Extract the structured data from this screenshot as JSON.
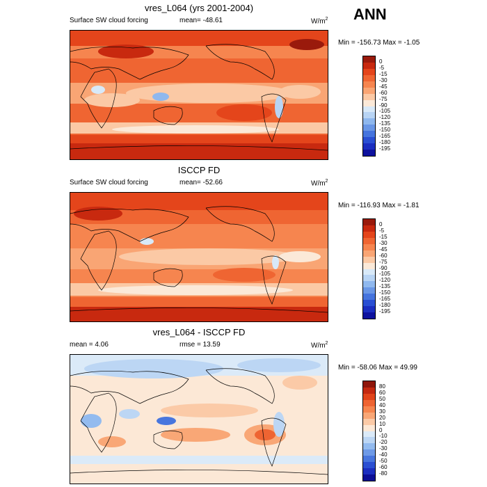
{
  "season": "ANN",
  "panels": [
    {
      "title": "vres_L064 (yrs 2001-2004)",
      "left_label": "Surface SW cloud forcing",
      "center_label": "mean= -48.61",
      "units_label": "W/m",
      "units_sup": "2",
      "minmax": "Min = -156.73 Max =  -1.05",
      "colorbar": {
        "labels": [
          "0",
          "-5",
          "-15",
          "-30",
          "-45",
          "-60",
          "-75",
          "-90",
          "-105",
          "-120",
          "-135",
          "-150",
          "-165",
          "-180",
          "-195"
        ],
        "colors": [
          "#9a1a0c",
          "#c8290f",
          "#e4451b",
          "#ef6532",
          "#f6854f",
          "#f9a574",
          "#fbc9a5",
          "#fbe9d8",
          "#d8e9f8",
          "#b8d4f4",
          "#8fb8ee",
          "#6a97e6",
          "#4574de",
          "#2a4fd3",
          "#1b2ec0",
          "#0e129e"
        ]
      }
    },
    {
      "title": "ISCCP FD",
      "left_label": "Surface SW cloud forcing",
      "center_label": "mean= -52.66",
      "units_label": "W/m",
      "units_sup": "2",
      "minmax": "Min = -116.93 Max =  -1.81",
      "colorbar": {
        "labels": [
          "0",
          "-5",
          "-15",
          "-30",
          "-45",
          "-60",
          "-75",
          "-90",
          "-105",
          "-120",
          "-135",
          "-150",
          "-165",
          "-180",
          "-195"
        ],
        "colors": [
          "#9a1a0c",
          "#c8290f",
          "#e4451b",
          "#ef6532",
          "#f6854f",
          "#f9a574",
          "#fbc9a5",
          "#fbe9d8",
          "#d8e9f8",
          "#b8d4f4",
          "#8fb8ee",
          "#6a97e6",
          "#4574de",
          "#2a4fd3",
          "#1b2ec0",
          "#0e129e"
        ]
      }
    },
    {
      "title": "vres_L064 - ISCCP FD",
      "left_label": "mean =   4.06",
      "center_label": "rmse =  13.59",
      "units_label": "W/m",
      "units_sup": "2",
      "minmax": "Min = -58.06 Max =  49.99",
      "colorbar": {
        "labels": [
          "80",
          "60",
          "50",
          "40",
          "30",
          "20",
          "10",
          "0",
          "-10",
          "-20",
          "-30",
          "-40",
          "-50",
          "-60",
          "-80"
        ],
        "colors": [
          "#8f160b",
          "#c32810",
          "#e1441a",
          "#ee6432",
          "#f6864f",
          "#f9a776",
          "#fbcaa7",
          "#fce8d6",
          "#dbeaf8",
          "#bcd6f4",
          "#93bbef",
          "#6e9ae7",
          "#4876de",
          "#2b4fd2",
          "#1b2ec0",
          "#0c0f96"
        ]
      }
    }
  ]
}
